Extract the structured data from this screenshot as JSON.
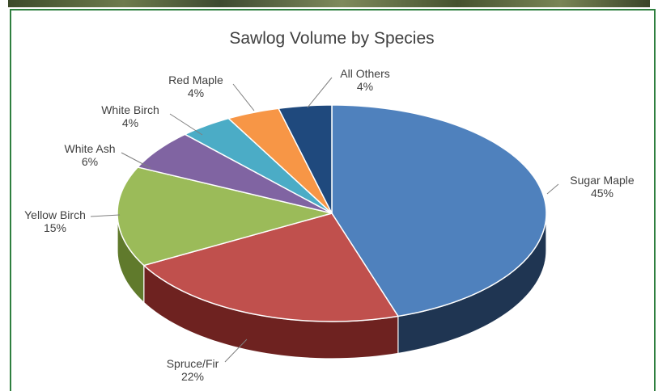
{
  "chart_data": {
    "type": "pie",
    "title": "Sawlog Volume by Species",
    "slices": [
      {
        "label": "Sugar Maple",
        "pct_text": "45%",
        "value": 45,
        "color": "#4f81bd",
        "side": "#1f3552"
      },
      {
        "label": "Spruce/Fir",
        "pct_text": "22%",
        "value": 22,
        "color": "#c0504d",
        "side": "#6e2220"
      },
      {
        "label": "Yellow Birch",
        "pct_text": "15%",
        "value": 15,
        "color": "#9bbb59",
        "side": "#607a2c"
      },
      {
        "label": "White Ash",
        "pct_text": "6%",
        "value": 6,
        "color": "#8064a2",
        "side": "#4a3566"
      },
      {
        "label": "White Birch",
        "pct_text": "4%",
        "value": 4,
        "color": "#4bacc6",
        "side": "#266a7d"
      },
      {
        "label": "Red Maple",
        "pct_text": "4%",
        "value": 4,
        "color": "#f79646",
        "side": "#a3561a"
      },
      {
        "label": "All Others",
        "pct_text": "4%",
        "value": 4,
        "color": "#1f497d",
        "side": "#0f2645"
      }
    ]
  }
}
